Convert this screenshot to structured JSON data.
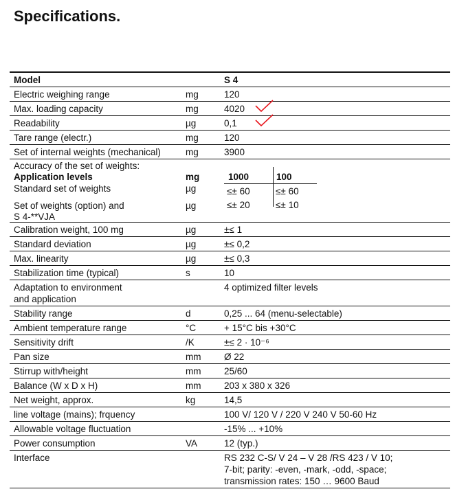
{
  "title": "Specifications.",
  "header": {
    "label": "Model",
    "value": "S 4"
  },
  "rows_top": [
    {
      "label": "Electric weighing range",
      "unit": "mg",
      "value": "120"
    },
    {
      "label": "Max. loading capacity",
      "unit": "mg",
      "value": "4020",
      "checked": true
    },
    {
      "label": "Readability",
      "unit": "µg",
      "value": "0,1",
      "checked": true
    },
    {
      "label": "Tare range (electr.)",
      "unit": "mg",
      "value": "120"
    },
    {
      "label": "Set of internal weights (mechanical)",
      "unit": "mg",
      "value": "3900"
    }
  ],
  "accuracy": {
    "heading": "Accuracy of the set of weights:",
    "levels_label": "Application levels",
    "levels_unit": "mg",
    "level_1": "1000",
    "level_2": "100",
    "standard_label": "Standard set of weights",
    "standard_unit": "µg",
    "standard_1": "≤± 60",
    "standard_2": "≤± 60",
    "option_label": "Set of weights (option) and",
    "option_label_2": "S 4-**VJA",
    "option_unit": "µg",
    "option_1": "≤± 20",
    "option_2": "≤± 10"
  },
  "rows_bottom": [
    {
      "label": "Calibration weight, 100 mg",
      "unit": "µg",
      "value": "±≤ 1"
    },
    {
      "label": "Standard deviation",
      "unit": "µg",
      "value": "±≤ 0,2"
    },
    {
      "label": "Max. linearity",
      "unit": "µg",
      "value": "±≤ 0,3"
    },
    {
      "label": "Stabilization time (typical)",
      "unit": "s",
      "value": "10"
    },
    {
      "label": "Adaptation to environment\nand application",
      "unit": "",
      "value": "4 optimized filter levels"
    },
    {
      "label": "Stability range",
      "unit": "d",
      "value": "0,25 ... 64 (menu-selectable)"
    },
    {
      "label": "Ambient temperature range",
      "unit": "°C",
      "value": "+ 15°C bis +30°C"
    },
    {
      "label": "Sensitivity drift",
      "unit": "/K",
      "value": "±≤ 2 · 10⁻⁶"
    },
    {
      "label": "Pan size",
      "unit": "mm",
      "value": "Ø 22"
    },
    {
      "label": "Stirrup with/height",
      "unit": "mm",
      "value": "25/60"
    },
    {
      "label": "Balance (W x D x H)",
      "unit": "mm",
      "value": "203 x 380 x 326"
    },
    {
      "label": "Net weight, approx.",
      "unit": "kg",
      "value": "14,5"
    },
    {
      "label": "line voltage (mains); frquency",
      "unit": "",
      "value": "100 V/ 120 V / 220 V 240 V 50-60 Hz"
    },
    {
      "label": "Allowable voltage fluctuation",
      "unit": "",
      "value": "-15% ... +10%"
    },
    {
      "label": "Power consumption",
      "unit": "VA",
      "value": "12 (typ.)"
    },
    {
      "label": "Interface",
      "unit": "",
      "value": "RS 232 C-S/ V 24 – V 28 /RS 423 / V 10;\n7-bit; parity: -even, -mark, -odd, -space;\ntransmission rates: 150 … 9600 Baud"
    }
  ],
  "colors": {
    "check": "#e8141b",
    "text": "#111111"
  }
}
